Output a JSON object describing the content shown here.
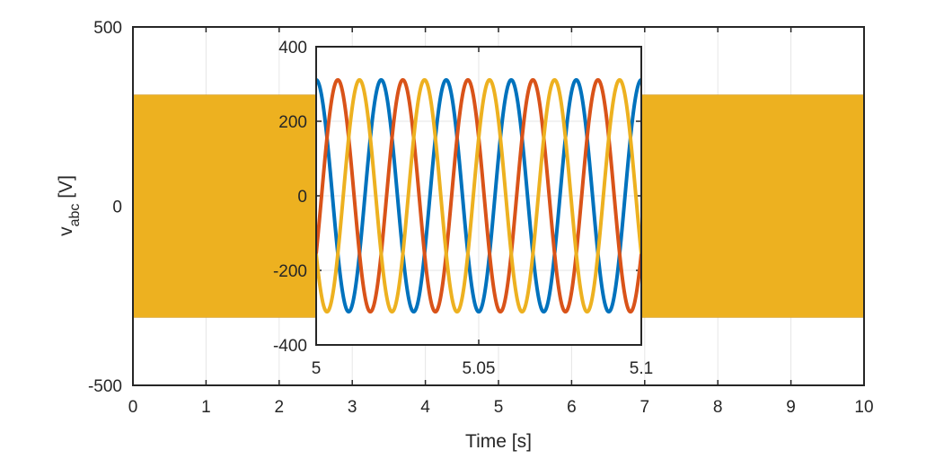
{
  "chart_data": [
    {
      "type": "line",
      "xlabel": "Time [s]",
      "ylabel": {
        "base": "v",
        "sub": "abc",
        "unit": " [V]"
      },
      "xlim": [
        0,
        10
      ],
      "ylim": [
        -500,
        500
      ],
      "xticks": [
        0,
        1,
        2,
        3,
        4,
        5,
        6,
        7,
        8,
        9,
        10
      ],
      "xtick_labels": [
        "0",
        "1",
        "2",
        "3",
        "4",
        "5",
        "6",
        "7",
        "8",
        "9",
        "10"
      ],
      "yticks": [
        -500,
        0,
        500
      ],
      "ytick_labels": [
        "-500",
        "0",
        "500"
      ],
      "grid": true,
      "series": [
        {
          "amplitude": 311,
          "frequency_hz": 50,
          "phase_deg": 90,
          "color": "#0072BD"
        },
        {
          "amplitude": 311,
          "frequency_hz": 50,
          "phase_deg": -30,
          "color": "#D95319"
        },
        {
          "amplitude": 311,
          "frequency_hz": 50,
          "phase_deg": 210,
          "color": "#EDB120"
        }
      ]
    },
    {
      "type": "line",
      "inset": true,
      "xlim": [
        5,
        5.1
      ],
      "ylim": [
        -400,
        400
      ],
      "xticks": [
        5,
        5.05,
        5.1
      ],
      "xtick_labels": [
        "5",
        "5.05",
        "5.1"
      ],
      "yticks": [
        -400,
        -200,
        0,
        200,
        400
      ],
      "ytick_labels": [
        "-400",
        "-200",
        "0",
        "200",
        "400"
      ],
      "grid": true,
      "series": [
        {
          "amplitude": 311,
          "frequency_hz": 50,
          "phase_deg": 90,
          "color": "#0072BD"
        },
        {
          "amplitude": 311,
          "frequency_hz": 50,
          "phase_deg": -30,
          "color": "#D95319"
        },
        {
          "amplitude": 311,
          "frequency_hz": 50,
          "phase_deg": 210,
          "color": "#EDB120"
        }
      ]
    }
  ]
}
